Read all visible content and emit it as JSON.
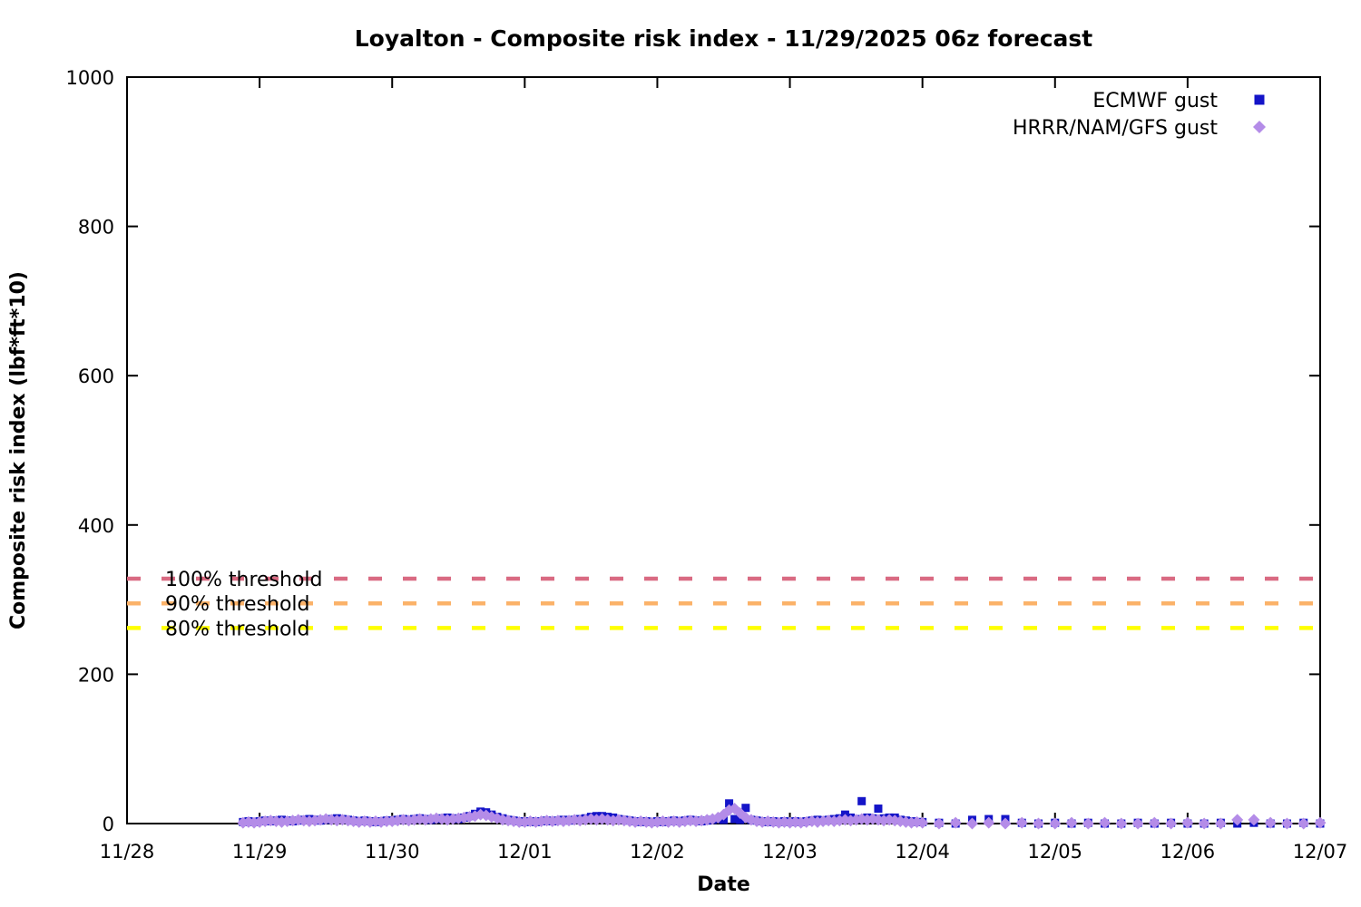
{
  "chart_data": {
    "type": "scatter",
    "title": "Loyalton - Composite risk index - 11/29/2025 06z forecast",
    "xlabel": "Date",
    "ylabel": "Composite risk index (lbf*ft*10)",
    "ylim": [
      0,
      1000
    ],
    "yticks": [
      0,
      200,
      400,
      600,
      800,
      1000
    ],
    "xticks": [
      "11/28",
      "11/29",
      "11/30",
      "12/01",
      "12/02",
      "12/03",
      "12/04",
      "12/05",
      "12/06",
      "12/07"
    ],
    "xlim_days": [
      0,
      9
    ],
    "grid": false,
    "legend_position": "top-right-inside",
    "thresholds": [
      {
        "label": "100% threshold",
        "value": 328,
        "color": "#d96a82"
      },
      {
        "label": "90% threshold",
        "value": 295,
        "color": "#fbb269"
      },
      {
        "label": "80% threshold",
        "value": 262,
        "color": "#ffff00"
      }
    ],
    "series": [
      {
        "name": "ECMWF gust",
        "marker": "square",
        "color": "#1414c8",
        "segments": [
          {
            "x_start_days": 0.875,
            "x_step_days": 0.0416667,
            "values": [
              2,
              3,
              2,
              3,
              4,
              3,
              4,
              5,
              4,
              3,
              4,
              5,
              6,
              5,
              4,
              5,
              6,
              7,
              6,
              5,
              4,
              3,
              4,
              3,
              2,
              3,
              4,
              4,
              5,
              6,
              5,
              6,
              7,
              6,
              5,
              6,
              7,
              8,
              7,
              6,
              8,
              10,
              13,
              16,
              15,
              12,
              9,
              7,
              5,
              4,
              3,
              2,
              3,
              2,
              3,
              4,
              3,
              4,
              5,
              4,
              5,
              6,
              7,
              9,
              10,
              10,
              9,
              8,
              6,
              5,
              4,
              3,
              2,
              3,
              2,
              3,
              2,
              3,
              4,
              3,
              4,
              5,
              4,
              3,
              4,
              5,
              6,
              5,
              27,
              6,
              5,
              21,
              5,
              4,
              3,
              2,
              3,
              2,
              3,
              2,
              3,
              2,
              3,
              4,
              5,
              4,
              5,
              6,
              7,
              12,
              8,
              6,
              30,
              8,
              7,
              20,
              7,
              8,
              8,
              5,
              4,
              3,
              2,
              2
            ]
          },
          {
            "x_start_days": 6.125,
            "x_step_days": 0.125,
            "values": [
              1,
              0,
              5,
              6,
              6,
              1,
              0,
              1,
              0,
              1,
              0,
              0,
              1,
              0,
              1,
              0,
              0,
              1,
              0,
              1,
              0,
              0,
              1,
              0
            ]
          }
        ]
      },
      {
        "name": "HRRR/NAM/GFS gust",
        "marker": "diamond",
        "color": "#b48ce8",
        "segments": [
          {
            "x_start_days": 0.875,
            "x_step_days": 0.0416667,
            "values": [
              1,
              2,
              1,
              2,
              3,
              4,
              3,
              2,
              3,
              4,
              5,
              4,
              3,
              4,
              5,
              6,
              5,
              4,
              5,
              4,
              3,
              2,
              3,
              2,
              3,
              2,
              3,
              3,
              4,
              5,
              4,
              5,
              6,
              5,
              6,
              7,
              6,
              5,
              6,
              7,
              8,
              9,
              10,
              12,
              11,
              9,
              7,
              5,
              4,
              3,
              2,
              2,
              3,
              2,
              3,
              4,
              3,
              4,
              3,
              4,
              5,
              4,
              5,
              6,
              5,
              6,
              5,
              4,
              5,
              4,
              3,
              2,
              3,
              2,
              1,
              2,
              3,
              2,
              3,
              2,
              3,
              4,
              3,
              4,
              5,
              6,
              8,
              12,
              18,
              20,
              14,
              8,
              5,
              3,
              2,
              3,
              2,
              1,
              2,
              1,
              2,
              1,
              2,
              3,
              2,
              3,
              4,
              3,
              4,
              5,
              4,
              5,
              6,
              5,
              6,
              5,
              4,
              5,
              4,
              3,
              2,
              1,
              2,
              1
            ]
          },
          {
            "x_start_days": 6.125,
            "x_step_days": 0.125,
            "values": [
              0,
              1,
              0,
              1,
              0,
              1,
              0,
              0,
              1,
              0,
              1,
              0,
              0,
              1,
              0,
              1,
              0,
              0,
              5,
              5,
              1,
              0,
              0,
              1
            ]
          }
        ]
      }
    ]
  }
}
